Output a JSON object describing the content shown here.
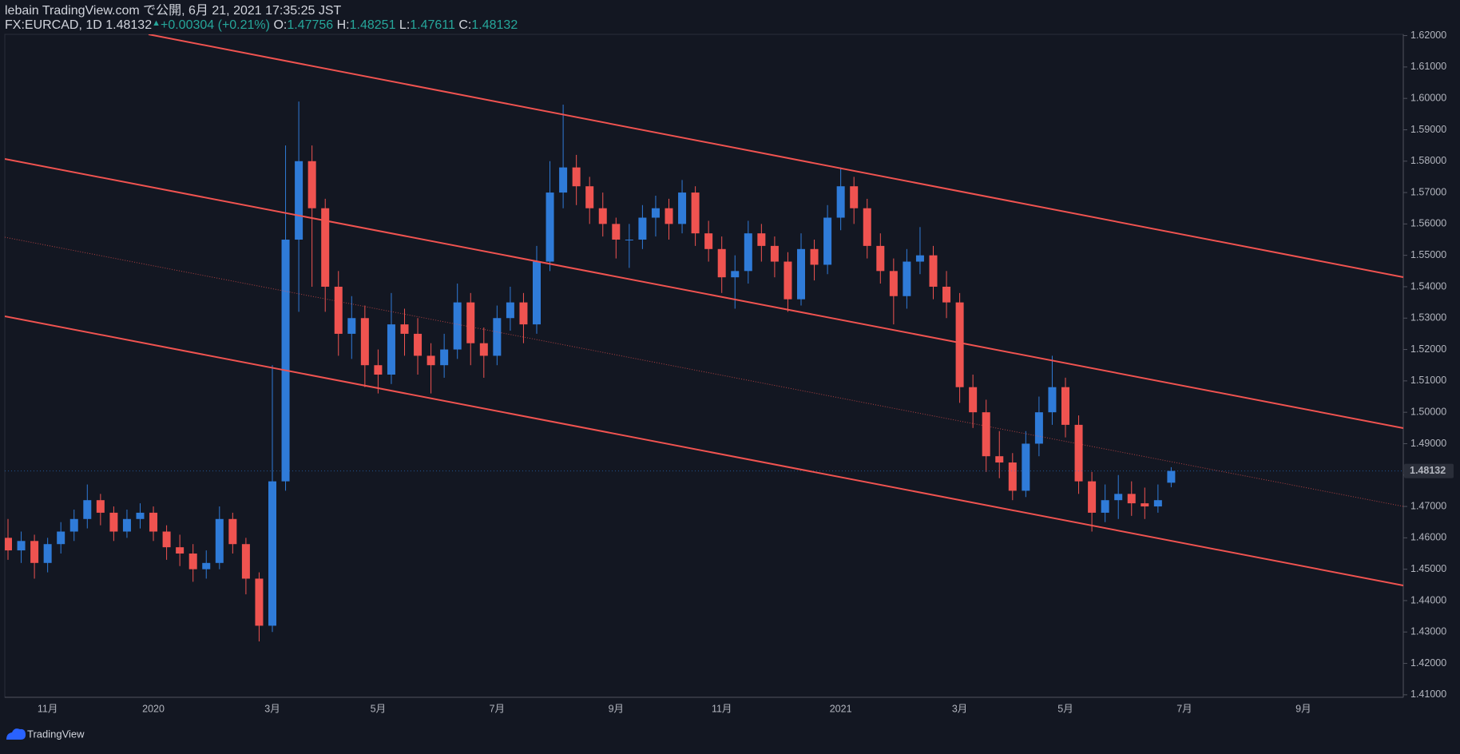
{
  "header": {
    "line1": "lebain TradingView.com で公開, 6月 21, 2021 17:35:25 JST",
    "symbol": "FX:EURCAD, 1D",
    "price": "1.48132",
    "arrow": "▲",
    "change": "+0.00304 (+0.21%)",
    "o_label": "O:",
    "o": "1.47756",
    "h_label": "H:",
    "h": "1.48251",
    "l_label": "L:",
    "l": "1.47611",
    "c_label": "C:",
    "c": "1.48132"
  },
  "footer": {
    "brand": "TradingView"
  },
  "chart_data": {
    "type": "candlestick",
    "up_color": "#2f7bd8",
    "down_color": "#ef5350",
    "categories": [
      null,
      null,
      null,
      "11月",
      null,
      null,
      null,
      null,
      null,
      null,
      null,
      "2020",
      null,
      null,
      null,
      null,
      null,
      null,
      null,
      null,
      "3月",
      null,
      null,
      null,
      null,
      null,
      null,
      null,
      "5月",
      null,
      null,
      null,
      null,
      null,
      null,
      null,
      null,
      "7月",
      null,
      null,
      null,
      null,
      null,
      null,
      null,
      null,
      "9月",
      null,
      null,
      null,
      null,
      null,
      null,
      null,
      "11月",
      null,
      null,
      null,
      null,
      null,
      null,
      null,
      null,
      "2021",
      null,
      null,
      null,
      null,
      null,
      null,
      null,
      null,
      "3月",
      null,
      null,
      null,
      null,
      null,
      null,
      null,
      "5月",
      null,
      null,
      null,
      null,
      null,
      null,
      null,
      null,
      "7月",
      null,
      null,
      null,
      null,
      null,
      null,
      null,
      null,
      "9月",
      null,
      null,
      null,
      null,
      null,
      null,
      null
    ],
    "open": [
      1.46,
      1.456,
      1.459,
      1.452,
      1.458,
      1.462,
      1.466,
      1.472,
      1.468,
      1.462,
      1.466,
      1.468,
      1.462,
      1.457,
      1.455,
      1.45,
      1.452,
      1.466,
      1.458,
      1.447,
      1.432,
      1.478,
      1.555,
      1.58,
      1.565,
      1.54,
      1.525,
      1.53,
      1.515,
      1.512,
      1.528,
      1.525,
      1.518,
      1.515,
      1.52,
      1.535,
      1.522,
      1.518,
      1.53,
      1.535,
      1.528,
      1.548,
      1.57,
      1.578,
      1.572,
      1.565,
      1.56,
      1.555,
      1.555,
      1.562,
      1.565,
      1.56,
      1.57,
      1.557,
      1.552,
      1.543,
      1.545,
      1.557,
      1.553,
      1.548,
      1.536,
      1.552,
      1.547,
      1.562,
      1.572,
      1.565,
      1.553,
      1.545,
      1.537,
      1.548,
      1.55,
      1.54,
      1.535,
      1.508,
      1.5,
      1.486,
      1.484,
      1.475,
      1.49,
      1.5,
      1.508,
      1.496,
      1.478,
      1.468,
      1.472,
      1.474,
      1.471,
      1.47,
      1.47756,
      null,
      null,
      null,
      null,
      null,
      null,
      null,
      null,
      null,
      null,
      null,
      null,
      null,
      null,
      null,
      null,
      null
    ],
    "high": [
      1.466,
      1.462,
      1.461,
      1.46,
      1.465,
      1.469,
      1.477,
      1.474,
      1.47,
      1.469,
      1.471,
      1.47,
      1.464,
      1.461,
      1.458,
      1.456,
      1.47,
      1.468,
      1.46,
      1.449,
      1.515,
      1.585,
      1.599,
      1.585,
      1.568,
      1.545,
      1.537,
      1.534,
      1.52,
      1.538,
      1.533,
      1.53,
      1.522,
      1.525,
      1.541,
      1.538,
      1.527,
      1.534,
      1.54,
      1.538,
      1.553,
      1.58,
      1.598,
      1.582,
      1.575,
      1.57,
      1.562,
      1.56,
      1.566,
      1.569,
      1.568,
      1.574,
      1.572,
      1.561,
      1.556,
      1.55,
      1.561,
      1.56,
      1.556,
      1.551,
      1.557,
      1.555,
      1.566,
      1.578,
      1.575,
      1.568,
      1.557,
      1.549,
      1.552,
      1.559,
      1.553,
      1.545,
      1.538,
      1.512,
      1.504,
      1.494,
      1.487,
      1.494,
      1.505,
      1.518,
      1.511,
      1.499,
      1.481,
      1.477,
      1.48,
      1.478,
      1.476,
      1.477,
      1.48251,
      null,
      null,
      null,
      null,
      null,
      null,
      null,
      null,
      null,
      null,
      null,
      null,
      null,
      null,
      null,
      null,
      null
    ],
    "low": [
      1.453,
      1.452,
      1.447,
      1.449,
      1.455,
      1.459,
      1.463,
      1.464,
      1.459,
      1.46,
      1.463,
      1.459,
      1.453,
      1.451,
      1.446,
      1.447,
      1.45,
      1.455,
      1.442,
      1.427,
      1.43,
      1.475,
      1.532,
      1.54,
      1.532,
      1.518,
      1.517,
      1.508,
      1.506,
      1.509,
      1.518,
      1.512,
      1.506,
      1.511,
      1.517,
      1.515,
      1.511,
      1.515,
      1.526,
      1.522,
      1.525,
      1.545,
      1.565,
      1.566,
      1.56,
      1.556,
      1.549,
      1.546,
      1.552,
      1.556,
      1.555,
      1.557,
      1.553,
      1.548,
      1.538,
      1.533,
      1.541,
      1.548,
      1.543,
      1.532,
      1.534,
      1.542,
      1.544,
      1.558,
      1.56,
      1.549,
      1.541,
      1.528,
      1.533,
      1.544,
      1.536,
      1.53,
      1.503,
      1.495,
      1.481,
      1.479,
      1.472,
      1.473,
      1.486,
      1.496,
      1.492,
      1.474,
      1.462,
      1.465,
      1.466,
      1.467,
      1.466,
      1.468,
      1.47611,
      null,
      null,
      null,
      null,
      null,
      null,
      null,
      null,
      null,
      null,
      null,
      null,
      null,
      null,
      null,
      null,
      null
    ],
    "close": [
      1.456,
      1.459,
      1.452,
      1.458,
      1.462,
      1.466,
      1.472,
      1.468,
      1.462,
      1.466,
      1.468,
      1.462,
      1.457,
      1.455,
      1.45,
      1.452,
      1.466,
      1.458,
      1.447,
      1.432,
      1.478,
      1.555,
      1.58,
      1.565,
      1.54,
      1.525,
      1.53,
      1.515,
      1.512,
      1.528,
      1.525,
      1.518,
      1.515,
      1.52,
      1.535,
      1.522,
      1.518,
      1.53,
      1.535,
      1.528,
      1.548,
      1.57,
      1.578,
      1.572,
      1.565,
      1.56,
      1.555,
      1.555,
      1.562,
      1.565,
      1.56,
      1.57,
      1.557,
      1.552,
      1.543,
      1.545,
      1.557,
      1.553,
      1.548,
      1.536,
      1.552,
      1.547,
      1.562,
      1.572,
      1.565,
      1.553,
      1.545,
      1.537,
      1.548,
      1.55,
      1.54,
      1.535,
      1.508,
      1.5,
      1.486,
      1.484,
      1.475,
      1.49,
      1.5,
      1.508,
      1.496,
      1.478,
      1.468,
      1.472,
      1.474,
      1.471,
      1.47,
      1.472,
      1.48132,
      null,
      null,
      null,
      null,
      null,
      null,
      null,
      null,
      null,
      null,
      null,
      null,
      null,
      null,
      null,
      null,
      null
    ],
    "ylim": [
      1.4092,
      1.6204
    ],
    "yticks": [
      {
        "value": 1.41,
        "label": "1.41000"
      },
      {
        "value": 1.42,
        "label": "1.42000"
      },
      {
        "value": 1.43,
        "label": "1.43000"
      },
      {
        "value": 1.44,
        "label": "1.44000"
      },
      {
        "value": 1.45,
        "label": "1.45000"
      },
      {
        "value": 1.46,
        "label": "1.46000"
      },
      {
        "value": 1.47,
        "label": "1.47000"
      },
      {
        "value": 1.48,
        "label": "1.48000"
      },
      {
        "value": 1.49,
        "label": "1.49000"
      },
      {
        "value": 1.5,
        "label": "1.50000"
      },
      {
        "value": 1.51,
        "label": "1.51000"
      },
      {
        "value": 1.52,
        "label": "1.52000"
      },
      {
        "value": 1.53,
        "label": "1.53000"
      },
      {
        "value": 1.54,
        "label": "1.54000"
      },
      {
        "value": 1.55,
        "label": "1.55000"
      },
      {
        "value": 1.56,
        "label": "1.56000"
      },
      {
        "value": 1.57,
        "label": "1.57000"
      },
      {
        "value": 1.58,
        "label": "1.58000"
      },
      {
        "value": 1.59,
        "label": "1.59000"
      },
      {
        "value": 1.6,
        "label": "1.60000"
      },
      {
        "value": 1.61,
        "label": "1.61000"
      },
      {
        "value": 1.62,
        "label": "1.62000"
      }
    ],
    "grid": false
  }
}
